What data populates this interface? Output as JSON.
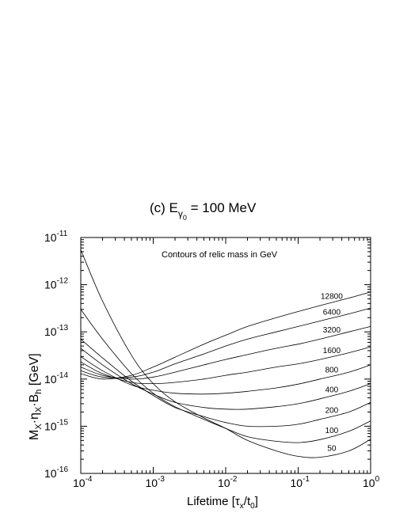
{
  "chart_data": {
    "type": "line",
    "title": "(c) E",
    "title_sub": "γ",
    "title_subsub": "0",
    "title_rest": " = 100 MeV",
    "annotation": "Contours of relic mass in GeV",
    "xlabel": {
      "main": "Lifetime  [τ",
      "sub1": "x",
      "slash": "/t",
      "sub2": "0",
      "end": "]"
    },
    "ylabel": {
      "m": "M",
      "m_sub": "X",
      "eta": "·η",
      "eta_sub": "X",
      "b": "·B",
      "b_sub": "h",
      "unit": "  [GeV]"
    },
    "x_scale": "log",
    "y_scale": "log",
    "xlim": [
      0.0001,
      1
    ],
    "ylim": [
      1e-16,
      1e-11
    ],
    "x_ticks": [
      {
        "mant": "10",
        "exp": "-4"
      },
      {
        "mant": "10",
        "exp": "-3"
      },
      {
        "mant": "10",
        "exp": "-2"
      },
      {
        "mant": "10",
        "exp": "-1"
      },
      {
        "mant": "10",
        "exp": "0"
      }
    ],
    "y_ticks": [
      {
        "mant": "10",
        "exp": "-16"
      },
      {
        "mant": "10",
        "exp": "-15"
      },
      {
        "mant": "10",
        "exp": "-14"
      },
      {
        "mant": "10",
        "exp": "-13"
      },
      {
        "mant": "10",
        "exp": "-12"
      },
      {
        "mant": "10",
        "exp": "-11"
      }
    ],
    "grid": false,
    "series": [
      {
        "name": "50",
        "x": [
          0.0001,
          0.0002,
          0.0005,
          0.001,
          0.002,
          0.005,
          0.01,
          0.02,
          0.05,
          0.1,
          0.2,
          0.5,
          1
        ],
        "y": [
          5.5e-12,
          4.5e-13,
          3.2e-14,
          8e-15,
          3.3e-15,
          1.5e-15,
          9e-16,
          5e-16,
          3e-16,
          2.3e-16,
          2.2e-16,
          3e-16,
          5.3e-16
        ]
      },
      {
        "name": "100",
        "x": [
          0.0001,
          0.0002,
          0.0005,
          0.001,
          0.002,
          0.005,
          0.01,
          0.02,
          0.05,
          0.1,
          0.2,
          0.5,
          1
        ],
        "y": [
          3e-13,
          7e-14,
          1.3e-14,
          5e-15,
          2.6e-15,
          1.4e-15,
          9e-16,
          6e-16,
          4.8e-16,
          4.5e-16,
          5.2e-16,
          7.8e-16,
          1.3e-15
        ]
      },
      {
        "name": "200",
        "x": [
          0.0001,
          0.0002,
          0.0005,
          0.001,
          0.002,
          0.005,
          0.01,
          0.02,
          0.05,
          0.1,
          0.2,
          0.5,
          1
        ],
        "y": [
          7e-14,
          2.8e-14,
          9e-15,
          4.5e-15,
          2.5e-15,
          1.6e-15,
          1.2e-15,
          1e-15,
          1e-15,
          1.1e-15,
          1.4e-15,
          2e-15,
          3.2e-15
        ]
      },
      {
        "name": "400",
        "x": [
          0.0001,
          0.0002,
          0.0005,
          0.001,
          0.002,
          0.005,
          0.01,
          0.02,
          0.05,
          0.1,
          0.2,
          0.5,
          1
        ],
        "y": [
          4.5e-14,
          2e-14,
          8e-15,
          4.8e-15,
          3.2e-15,
          2.5e-15,
          2.3e-15,
          2.3e-15,
          2.6e-15,
          3e-15,
          3.8e-15,
          5.5e-15,
          8e-15
        ]
      },
      {
        "name": "800",
        "x": [
          0.0001,
          0.0002,
          0.0005,
          0.001,
          0.002,
          0.005,
          0.01,
          0.02,
          0.05,
          0.1,
          0.2,
          0.5,
          1
        ],
        "y": [
          3e-14,
          1.5e-14,
          7.5e-15,
          5.8e-15,
          5e-15,
          4.8e-15,
          5e-15,
          5.5e-15,
          6.5e-15,
          7.8e-15,
          1e-14,
          1.4e-14,
          2e-14
        ]
      },
      {
        "name": "1600",
        "x": [
          0.0001,
          0.0002,
          0.0005,
          0.001,
          0.002,
          0.005,
          0.01,
          0.02,
          0.05,
          0.1,
          0.2,
          0.5,
          1
        ],
        "y": [
          2.3e-14,
          1.3e-14,
          8.5e-15,
          8e-15,
          8.5e-15,
          1e-14,
          1.2e-14,
          1.4e-14,
          1.8e-14,
          2.1e-14,
          2.6e-14,
          3.6e-14,
          4.8e-14
        ]
      },
      {
        "name": "3200",
        "x": [
          0.0001,
          0.0002,
          0.0005,
          0.001,
          0.002,
          0.005,
          0.01,
          0.02,
          0.05,
          0.1,
          0.2,
          0.5,
          1
        ],
        "y": [
          1.8e-14,
          1.2e-14,
          1e-14,
          1.1e-14,
          1.4e-14,
          2e-14,
          2.6e-14,
          3.3e-14,
          4.5e-14,
          5.5e-14,
          7e-14,
          1e-13,
          1.3e-13
        ]
      },
      {
        "name": "6400",
        "x": [
          0.0001,
          0.0002,
          0.0005,
          0.001,
          0.002,
          0.005,
          0.01,
          0.02,
          0.05,
          0.1,
          0.2,
          0.5,
          1
        ],
        "y": [
          1.5e-14,
          1.1e-14,
          1.1e-14,
          1.4e-14,
          2.1e-14,
          3.4e-14,
          5e-14,
          7e-14,
          1e-13,
          1.3e-13,
          1.7e-13,
          2.4e-13,
          3.2e-13
        ]
      },
      {
        "name": "12800",
        "x": [
          0.0001,
          0.0002,
          0.0005,
          0.001,
          0.002,
          0.005,
          0.01,
          0.02,
          0.05,
          0.1,
          0.2,
          0.5,
          1
        ],
        "y": [
          1.3e-14,
          1e-14,
          1.2e-14,
          1.8e-14,
          2.9e-14,
          5.5e-14,
          8.5e-14,
          1.3e-13,
          2e-13,
          2.7e-13,
          3.6e-13,
          5.2e-13,
          7e-13
        ]
      }
    ]
  }
}
